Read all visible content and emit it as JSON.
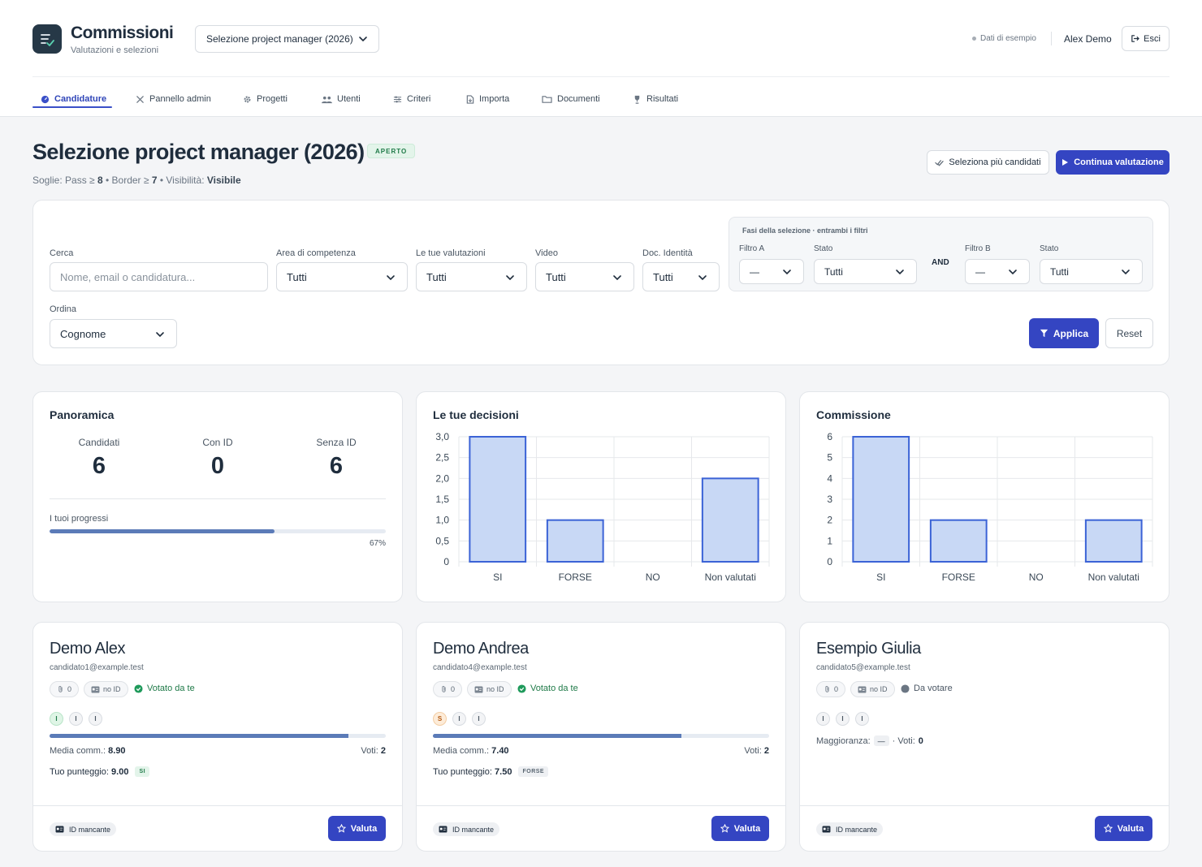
{
  "app": {
    "title": "Commissioni",
    "subtitle": "Valutazioni e selezioni"
  },
  "header": {
    "project_select": "Selezione project manager (2026)",
    "demo_label": "Dati di esempio",
    "user": "Alex Demo",
    "logout": "Esci"
  },
  "tabs": [
    {
      "label": "Candidature",
      "icon": "gauge-icon",
      "active": true
    },
    {
      "label": "Pannello admin",
      "icon": "tools-icon"
    },
    {
      "label": "Progetti",
      "icon": "gear-icon"
    },
    {
      "label": "Utenti",
      "icon": "users-icon"
    },
    {
      "label": "Criteri",
      "icon": "sliders-icon"
    },
    {
      "label": "Importa",
      "icon": "file-import-icon"
    },
    {
      "label": "Documenti",
      "icon": "folder-icon"
    },
    {
      "label": "Risultati",
      "icon": "trophy-icon"
    }
  ],
  "page": {
    "title": "Selezione project manager (2026)",
    "status": "APERTO",
    "thresholds_prefix": "Soglie: Pass ≥",
    "pass": "8",
    "border_prefix": "• Border ≥",
    "border": "7",
    "visibility_prefix": "• Visibilità:",
    "visibility": "Visibile",
    "btn_multi": "Seleziona più candidati",
    "btn_continue": "Continua valutazione"
  },
  "filters": {
    "search_label": "Cerca",
    "search_placeholder": "Nome, email o candidatura...",
    "area_label": "Area di competenza",
    "area_value": "Tutti",
    "my_label": "Le tue valutazioni",
    "my_value": "Tutti",
    "video_label": "Video",
    "video_value": "Tutti",
    "doc_label": "Doc. Identità",
    "doc_value": "Tutti",
    "phase_title": "Fasi della selezione · entrambi i filtri",
    "filter_a_label": "Filtro A",
    "filter_a_value": "—",
    "state_a_label": "Stato",
    "state_a_value": "Tutti",
    "and_label": "AND",
    "filter_b_label": "Filtro B",
    "filter_b_value": "—",
    "state_b_label": "Stato",
    "state_b_value": "Tutti",
    "order_label": "Ordina",
    "order_value": "Cognome",
    "apply": "Applica",
    "reset": "Reset"
  },
  "overview": {
    "title": "Panoramica",
    "stats": [
      {
        "label": "Candidati",
        "value": "6"
      },
      {
        "label": "Con ID",
        "value": "0"
      },
      {
        "label": "Senza ID",
        "value": "6"
      }
    ],
    "progress_label": "I tuoi progressi",
    "progress_pct": "67%",
    "progress_value": 0.67
  },
  "chart_data": [
    {
      "type": "bar",
      "title": "Le tue decisioni",
      "categories": [
        "SI",
        "FORSE",
        "NO",
        "Non valutati"
      ],
      "values": [
        3,
        1,
        0,
        2
      ],
      "ylim": [
        0,
        3
      ],
      "yticks": [
        "0",
        "0,5",
        "1,0",
        "1,5",
        "2,0",
        "2,5",
        "3,0"
      ],
      "ytick_values": [
        0,
        0.5,
        1,
        1.5,
        2,
        2.5,
        3
      ],
      "grid": true,
      "color": "#c8d8f5",
      "stroke": "#3b63d6"
    },
    {
      "type": "bar",
      "title": "Commissione",
      "categories": [
        "SI",
        "FORSE",
        "NO",
        "Non valutati"
      ],
      "values": [
        6,
        2,
        0,
        2
      ],
      "ylim": [
        0,
        6
      ],
      "yticks": [
        "0",
        "1",
        "2",
        "3",
        "4",
        "5",
        "6"
      ],
      "ytick_values": [
        0,
        1,
        2,
        3,
        4,
        5,
        6
      ],
      "grid": true,
      "color": "#c8d8f5",
      "stroke": "#3b63d6"
    }
  ],
  "candidates": [
    {
      "name": "Demo Alex",
      "email": "candidato1@example.test",
      "attachments": "0",
      "id_chip": "no ID",
      "vote_status": "Votato da te",
      "votes": [
        "I",
        "I",
        "I"
      ],
      "score": 0.89,
      "media_label": "Media comm.:",
      "media": "8.90",
      "voti_label": "Voti:",
      "voti": "2",
      "tuo_label": "Tuo punteggio:",
      "tuo": "9.00",
      "decision": "SI",
      "id_badge": "ID mancante",
      "action": "Valuta"
    },
    {
      "name": "Demo Andrea",
      "email": "candidato4@example.test",
      "attachments": "0",
      "id_chip": "no ID",
      "vote_status": "Votato da te",
      "votes": [
        "S",
        "I",
        "I"
      ],
      "score": 0.74,
      "media_label": "Media comm.:",
      "media": "7.40",
      "voti_label": "Voti:",
      "voti": "2",
      "tuo_label": "Tuo punteggio:",
      "tuo": "7.50",
      "decision": "FORSE",
      "id_badge": "ID mancante",
      "action": "Valuta"
    },
    {
      "name": "Esempio Giulia",
      "email": "candidato5@example.test",
      "attachments": "0",
      "id_chip": "no ID",
      "vote_status": "Da votare",
      "votes": [
        "I",
        "I",
        "I"
      ],
      "maggioranza_label": "Maggioranza:",
      "maggioranza": "—",
      "voti_label": "· Voti:",
      "voti": "0",
      "id_badge": "ID mancante",
      "action": "Valuta"
    }
  ]
}
